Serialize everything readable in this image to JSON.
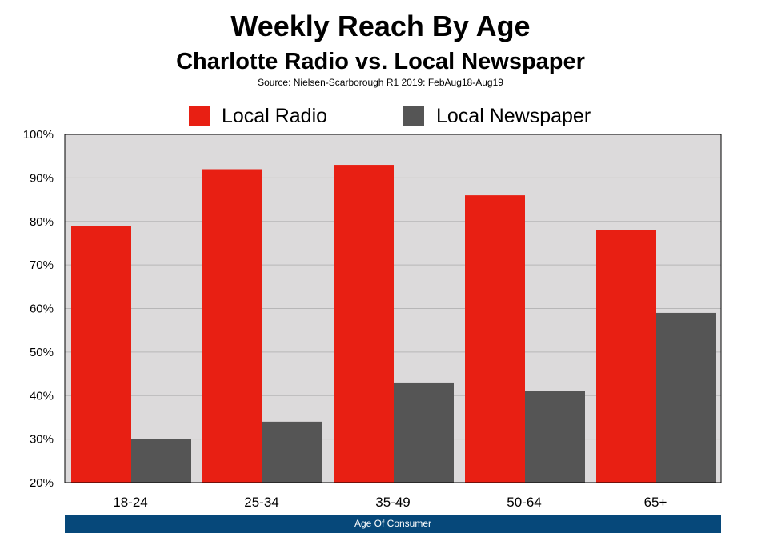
{
  "title": "Weekly Reach By Age",
  "subtitle": "Charlotte Radio vs. Local Newspaper",
  "source": "Source: Nielsen-Scarborough R1 2019: FebAug18-Aug19",
  "colors": {
    "radio": "#e81f13",
    "newspaper": "#555555",
    "plot_bg": "#dcdadb",
    "axis_band": "#06487a"
  },
  "chart_data": {
    "type": "bar",
    "title": "Weekly Reach By Age",
    "subtitle": "Charlotte Radio vs. Local Newspaper",
    "xlabel": "Age Of Consumer",
    "ylabel": "",
    "categories": [
      "18-24",
      "25-34",
      "35-49",
      "50-64",
      "65+"
    ],
    "series": [
      {
        "name": "Local Radio",
        "values": [
          79,
          92,
          93,
          86,
          78
        ],
        "color": "#e81f13"
      },
      {
        "name": "Local Newspaper",
        "values": [
          30,
          34,
          43,
          41,
          59
        ],
        "color": "#555555"
      }
    ],
    "ylim": [
      20,
      100
    ],
    "yticks": [
      20,
      30,
      40,
      50,
      60,
      70,
      80,
      90,
      100
    ],
    "ytick_labels": [
      "20%",
      "30%",
      "40%",
      "50%",
      "60%",
      "70%",
      "80%",
      "90%",
      "100%"
    ],
    "grid": true,
    "legend_position": "top"
  }
}
